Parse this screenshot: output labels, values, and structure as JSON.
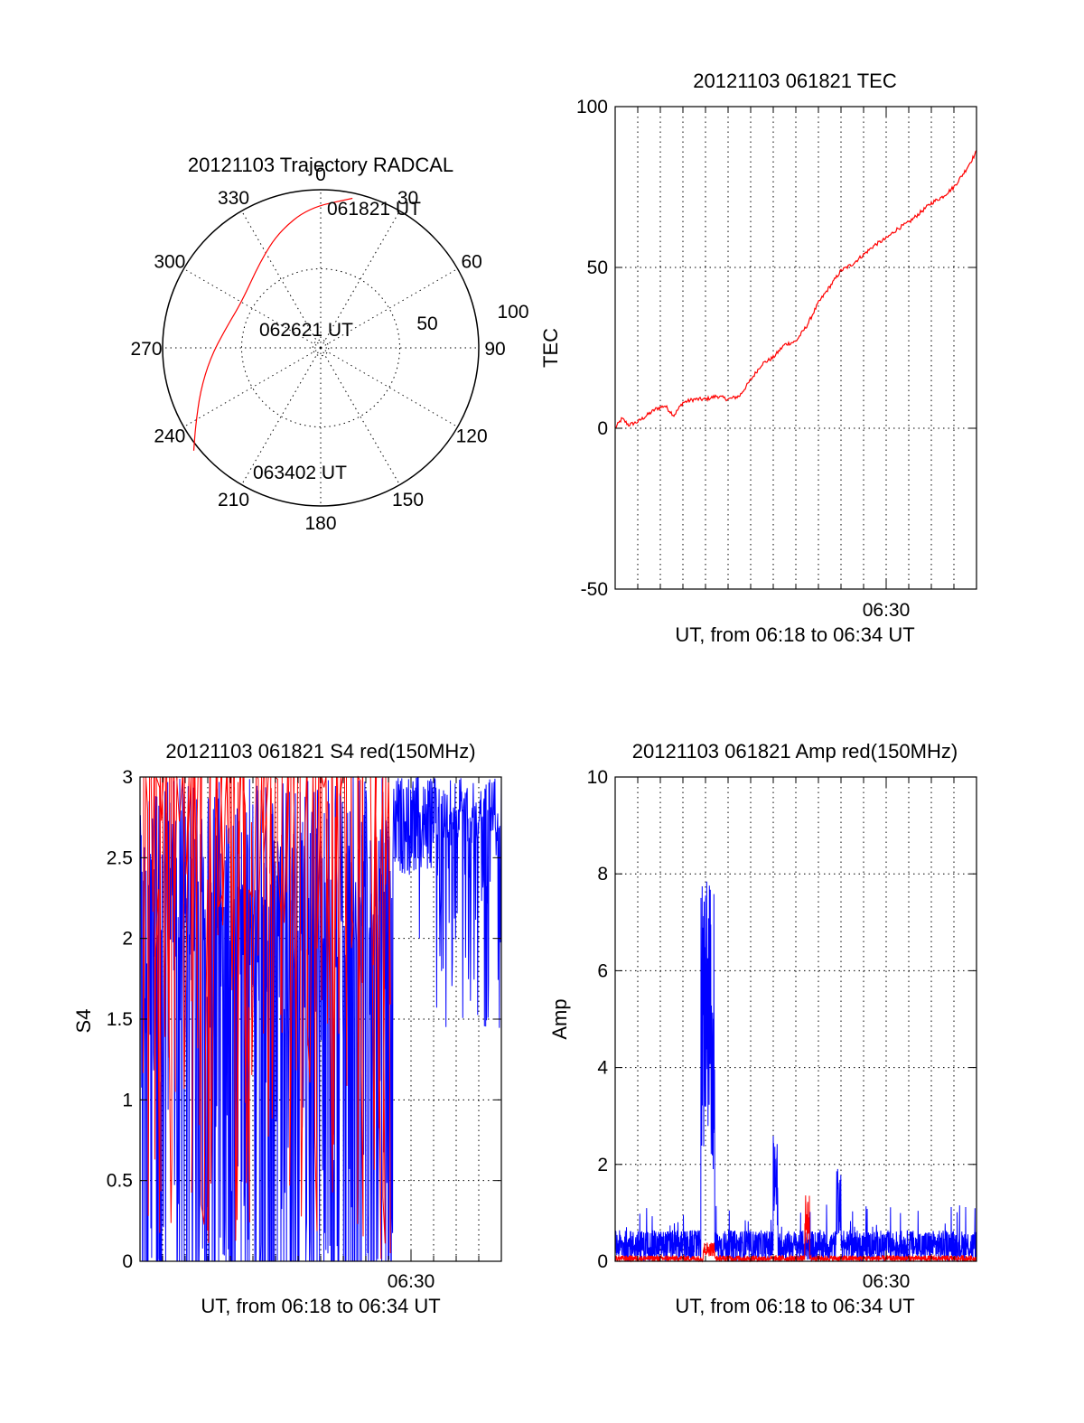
{
  "colors": {
    "red": "#ff0000",
    "blue": "#0000ff",
    "axis": "#000000"
  },
  "chart_data": [
    {
      "id": "trajectory",
      "type": "polar",
      "title": "20121103 Trajectory RADCAL",
      "azimuth_labels": [
        "0",
        "30",
        "60",
        "90",
        "120",
        "150",
        "180",
        "210",
        "240",
        "270",
        "300",
        "330"
      ],
      "radial_labels": [
        "50",
        "100"
      ],
      "annotations": [
        "061821 UT",
        "062621 UT",
        "063402 UT"
      ],
      "track": {
        "color": "red",
        "points": [
          {
            "az": 12,
            "zen": 87
          },
          {
            "az": 355,
            "zen": 80
          },
          {
            "az": 340,
            "zen": 70
          },
          {
            "az": 325,
            "zen": 60
          },
          {
            "az": 300,
            "zen": 52
          },
          {
            "az": 282,
            "zen": 55
          },
          {
            "az": 265,
            "zen": 63
          },
          {
            "az": 250,
            "zen": 73
          },
          {
            "az": 238,
            "zen": 84
          },
          {
            "az": 231,
            "zen": 93
          }
        ]
      }
    },
    {
      "id": "tec",
      "type": "line",
      "title": "20121103 061821 TEC",
      "xlabel": "UT, from 06:18 to 06:34 UT",
      "ylabel": "TEC",
      "xtick_labels": [
        "06:30"
      ],
      "xlim_minutes": [
        0,
        16
      ],
      "xtick_minute": 12,
      "ylim": [
        -50,
        100
      ],
      "yticks": [
        -50,
        0,
        50,
        100
      ],
      "series": [
        {
          "color": "red",
          "x": [
            0,
            0.3,
            0.6,
            1.0,
            1.4,
            1.8,
            2.2,
            2.6,
            3.0,
            3.5,
            4.0,
            4.5,
            5.0,
            5.5,
            6.0,
            6.5,
            7.0,
            7.5,
            8.0,
            8.5,
            9.0,
            9.5,
            10.0,
            10.5,
            11.0,
            11.5,
            12.0,
            12.5,
            13.0,
            13.5,
            14.0,
            14.5,
            15.0,
            15.5,
            16.0
          ],
          "y": [
            0,
            3,
            1,
            2,
            4,
            6,
            7,
            4,
            8,
            9,
            9,
            10,
            9,
            10,
            15,
            20,
            22,
            26,
            27,
            32,
            39,
            44,
            49,
            51,
            54,
            57,
            59,
            62,
            64,
            67,
            70,
            72,
            75,
            80,
            86
          ]
        }
      ]
    },
    {
      "id": "s4",
      "type": "line",
      "title": "20121103 061821 S4 red(150MHz)",
      "xlabel": "UT, from 06:18 to 06:34 UT",
      "ylabel": "S4",
      "xtick_labels": [
        "06:30"
      ],
      "xlim_minutes": [
        0,
        16
      ],
      "xtick_minute": 12,
      "ylim": [
        0,
        3
      ],
      "yticks": [
        "0",
        "0.5",
        "1",
        "1.5",
        "2",
        "2.5",
        "3"
      ],
      "series": [
        {
          "color": "blue",
          "note": "dense noisy trace, saturating at 3 with frequent drops"
        },
        {
          "color": "red",
          "note": "dense spikes concentrated between 06:18 and 06:29"
        }
      ]
    },
    {
      "id": "amp",
      "type": "line",
      "title": "20121103 061821 Amp red(150MHz)",
      "xlabel": "UT, from 06:18 to 06:34 UT",
      "ylabel": "Amp",
      "xtick_labels": [
        "06:30"
      ],
      "xlim_minutes": [
        0,
        16
      ],
      "xtick_minute": 12,
      "ylim": [
        0,
        10
      ],
      "yticks": [
        "0",
        "2",
        "4",
        "6",
        "8",
        "10"
      ],
      "series": [
        {
          "color": "blue",
          "baseline": 0.4,
          "bursts": [
            {
              "x0": 3.8,
              "x1": 4.4,
              "peak": 8
            },
            {
              "x0": 7.0,
              "x1": 7.2,
              "peak": 2.7
            },
            {
              "x0": 9.8,
              "x1": 10.0,
              "peak": 2.0
            }
          ]
        },
        {
          "color": "red",
          "baseline": 0.1,
          "bursts": [
            {
              "x0": 3.9,
              "x1": 4.4,
              "peak": 0.4
            },
            {
              "x0": 8.4,
              "x1": 8.6,
              "peak": 1.4
            }
          ]
        }
      ]
    }
  ]
}
